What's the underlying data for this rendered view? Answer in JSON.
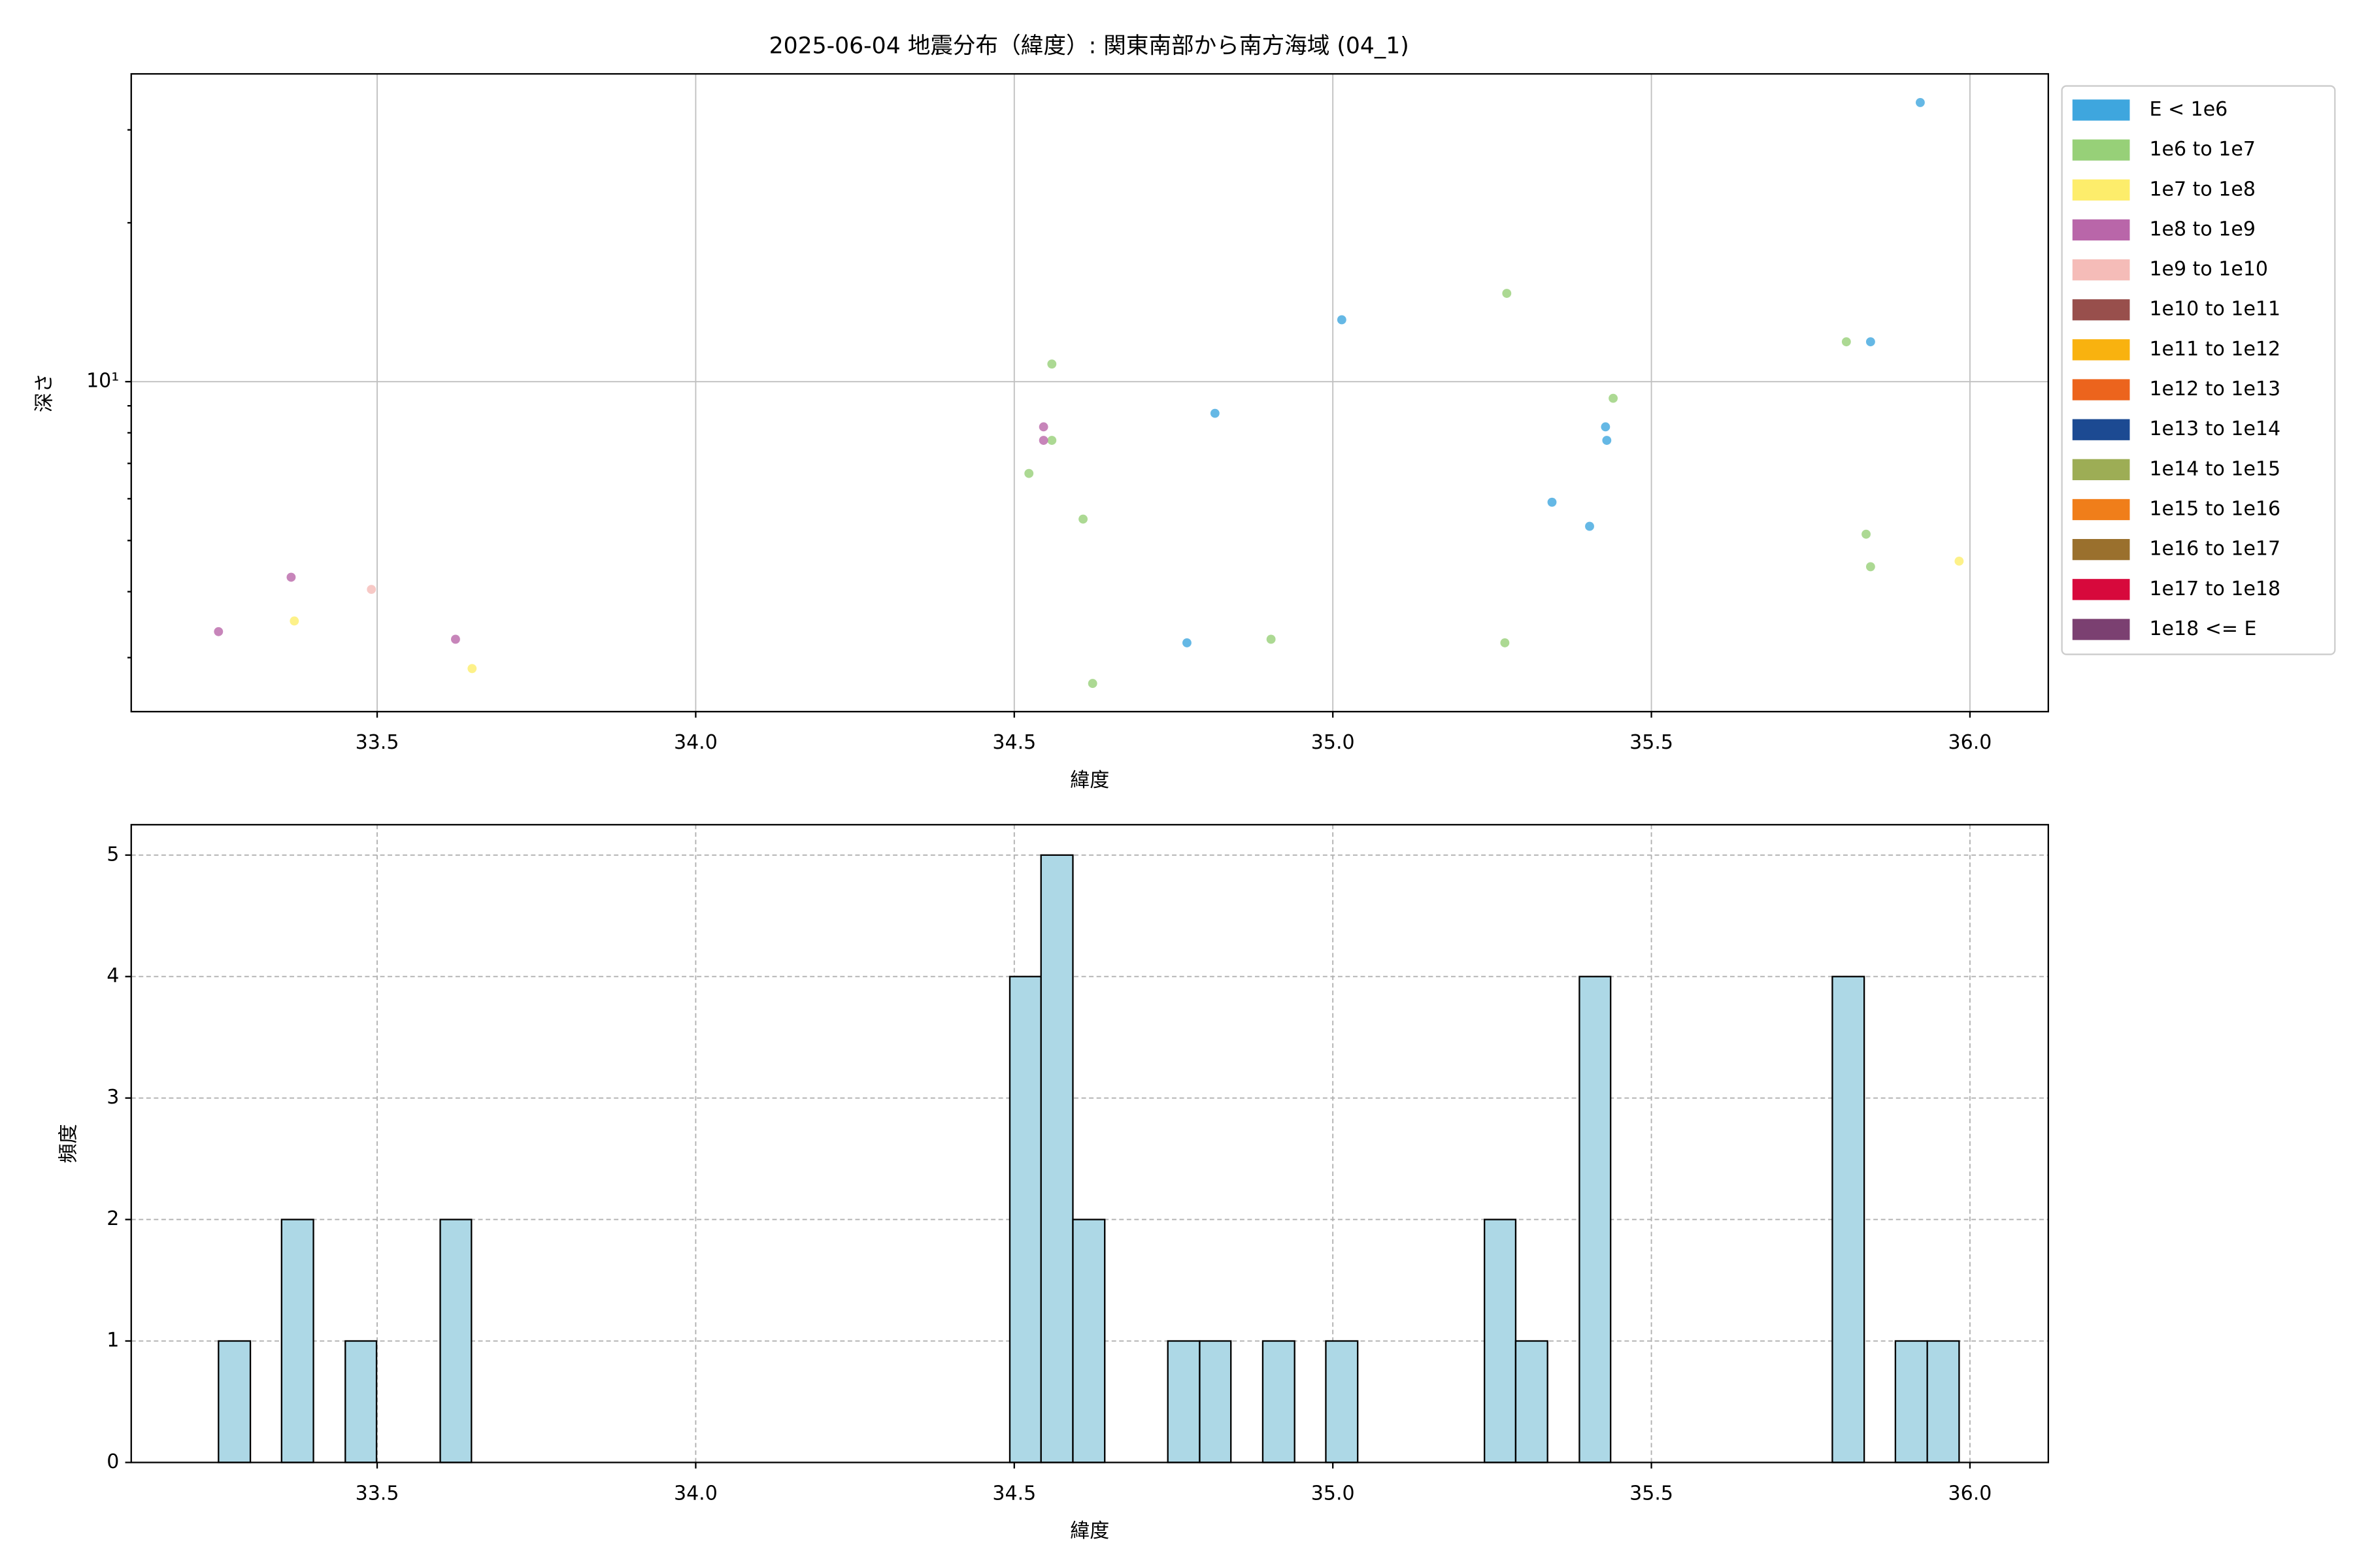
{
  "chart_data": [
    {
      "type": "scatter",
      "title": "2025-06-04 地震分布（緯度）: 関東南部から南方海域 (04_1)",
      "x_label": "緯度",
      "y_label": "深さ",
      "log_y": true,
      "grid": true,
      "xlim": [
        33.114,
        36.123
      ],
      "ylim": [
        2.37,
        38.3
      ],
      "xticks": [
        33.5,
        {
          "value": 34,
          "label": "34.0"
        },
        34.5,
        {
          "value": 35,
          "label": "35.0"
        },
        35.5,
        {
          "value": 36,
          "label": "36.0"
        }
      ],
      "yticks": [
        {
          "value": 10,
          "label": "10¹"
        }
      ],
      "yminorticks": [
        3,
        4,
        5,
        6,
        7,
        8,
        9,
        20,
        30
      ],
      "series": [
        {
          "name": "E < 1e6",
          "color": "#3ea6de",
          "x": [
            35.922,
            35.014,
            35.844,
            34.815,
            35.428,
            35.43,
            35.344,
            35.403,
            34.771
          ],
          "values": [
            33.8,
            13.1,
            11.9,
            8.71,
            8.21,
            7.74,
            5.91,
            5.32,
            3.2
          ]
        },
        {
          "name": "1e6 to 1e7",
          "color": "#97d078",
          "x": [
            35.273,
            35.806,
            34.559,
            35.44,
            34.559,
            34.523,
            34.608,
            35.837,
            35.844,
            34.903,
            35.27,
            34.623
          ],
          "values": [
            14.7,
            11.9,
            10.8,
            9.3,
            7.74,
            6.7,
            5.49,
            5.14,
            4.46,
            3.25,
            3.2,
            2.68
          ]
        },
        {
          "name": "1e7 to 1e8",
          "color": "#fded6b",
          "x": [
            35.983,
            33.37,
            33.649
          ],
          "values": [
            4.57,
            3.52,
            2.86
          ]
        },
        {
          "name": "1e8 to 1e9",
          "color": "#b966a9",
          "x": [
            34.546,
            34.546,
            33.365,
            33.251,
            33.623
          ],
          "values": [
            8.21,
            7.74,
            4.26,
            3.36,
            3.25
          ]
        },
        {
          "name": "1e9 to 1e10",
          "color": "#f5bcb8",
          "x": [
            33.491
          ],
          "values": [
            4.04
          ]
        },
        {
          "name": "1e10 to 1e11",
          "color": "#984f4c",
          "x": [],
          "values": []
        },
        {
          "name": "1e11 to 1e12",
          "color": "#f9b20f",
          "x": [],
          "values": []
        },
        {
          "name": "1e12 to 1e13",
          "color": "#ec641d",
          "x": [],
          "values": []
        },
        {
          "name": "1e13 to 1e14",
          "color": "#1c4a92",
          "x": [],
          "values": []
        },
        {
          "name": "1e14 to 1e15",
          "color": "#9dad55",
          "x": [],
          "values": []
        },
        {
          "name": "1e15 to 1e16",
          "color": "#f07e1a",
          "x": [],
          "values": []
        },
        {
          "name": "1e16 to 1e17",
          "color": "#9a702d",
          "x": [],
          "values": []
        },
        {
          "name": "1e17 to 1e18",
          "color": "#d7093c",
          "x": [],
          "values": []
        },
        {
          "name": "1e18 <= E",
          "color": "#7b4071",
          "x": [],
          "values": []
        }
      ]
    },
    {
      "type": "histogram",
      "x_label": "緯度",
      "y_label": "頻度",
      "grid": true,
      "color": "#add8e6",
      "xlim": [
        33.114,
        36.123
      ],
      "ylim": [
        0,
        5.25
      ],
      "xticks": [
        33.5,
        {
          "value": 34,
          "label": "34.0"
        },
        34.5,
        {
          "value": 35,
          "label": "35.0"
        },
        35.5,
        {
          "value": 36,
          "label": "36.0"
        }
      ],
      "yticks": [
        0,
        1,
        2,
        3,
        4,
        5
      ],
      "bins": [
        33.251,
        33.301,
        33.35,
        33.4,
        33.45,
        33.499,
        33.549,
        33.599,
        33.648,
        33.698,
        33.748,
        33.797,
        33.847,
        33.897,
        33.946,
        33.996,
        34.046,
        34.095,
        34.145,
        34.195,
        34.244,
        34.294,
        34.344,
        34.393,
        34.443,
        34.493,
        34.542,
        34.592,
        34.642,
        34.691,
        34.741,
        34.791,
        34.84,
        34.89,
        34.94,
        34.989,
        35.039,
        35.089,
        35.138,
        35.188,
        35.238,
        35.287,
        35.337,
        35.387,
        35.436,
        35.486,
        35.536,
        35.585,
        35.635,
        35.685,
        35.734,
        35.784,
        35.834,
        35.883,
        35.933,
        35.983
      ],
      "values": [
        1,
        0,
        2,
        0,
        1,
        0,
        0,
        2,
        0,
        0,
        0,
        0,
        0,
        0,
        0,
        0,
        0,
        0,
        0,
        0,
        0,
        0,
        0,
        0,
        0,
        4,
        5,
        2,
        0,
        0,
        1,
        1,
        0,
        1,
        0,
        1,
        0,
        0,
        0,
        0,
        2,
        1,
        0,
        4,
        0,
        0,
        0,
        0,
        0,
        0,
        0,
        4,
        0,
        1,
        1
      ]
    }
  ]
}
